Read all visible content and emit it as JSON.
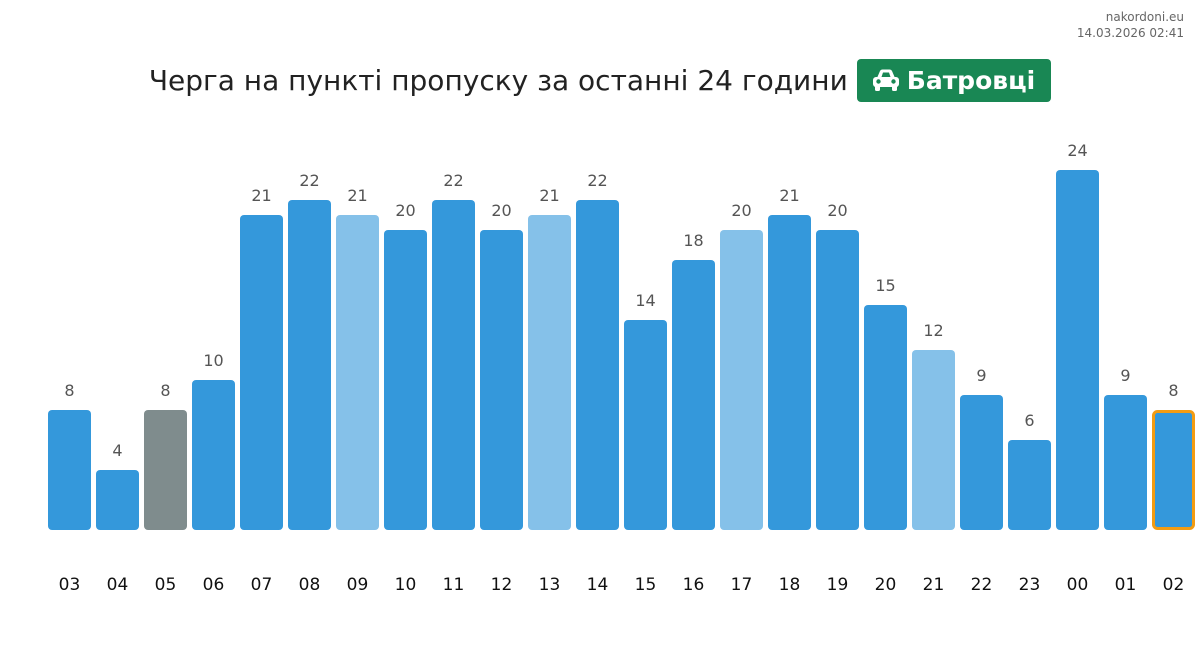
{
  "source": {
    "site": "nakordoni.eu",
    "timestamp": "14.03.2026 02:41"
  },
  "header": {
    "title": "Черга на пункті пропуску за останні 24 години",
    "checkpoint": "Батровці",
    "checkpoint_icon": "car-icon",
    "badge_color": "#198754"
  },
  "chart_data": {
    "type": "bar",
    "categories": [
      "03",
      "04",
      "05",
      "06",
      "07",
      "08",
      "09",
      "10",
      "11",
      "12",
      "13",
      "14",
      "15",
      "16",
      "17",
      "18",
      "19",
      "20",
      "21",
      "22",
      "23",
      "00",
      "01",
      "02"
    ],
    "values": [
      8,
      4,
      8,
      10,
      21,
      22,
      21,
      20,
      22,
      20,
      21,
      22,
      14,
      18,
      20,
      21,
      20,
      15,
      12,
      9,
      6,
      24,
      9,
      8
    ],
    "bar_styles": [
      "normal",
      "normal",
      "gray",
      "normal",
      "normal",
      "normal",
      "light",
      "normal",
      "normal",
      "normal",
      "light",
      "normal",
      "normal",
      "normal",
      "light",
      "normal",
      "normal",
      "normal",
      "light",
      "normal",
      "normal",
      "normal",
      "normal",
      "current"
    ],
    "colors": {
      "normal": "#3498db",
      "light": "#85c1e9",
      "gray": "#7f8c8d",
      "current_outline": "#f39c12",
      "label": "#555555",
      "tick": "#111111"
    },
    "ylim": [
      0,
      24
    ],
    "grid": false,
    "legend": "none"
  }
}
